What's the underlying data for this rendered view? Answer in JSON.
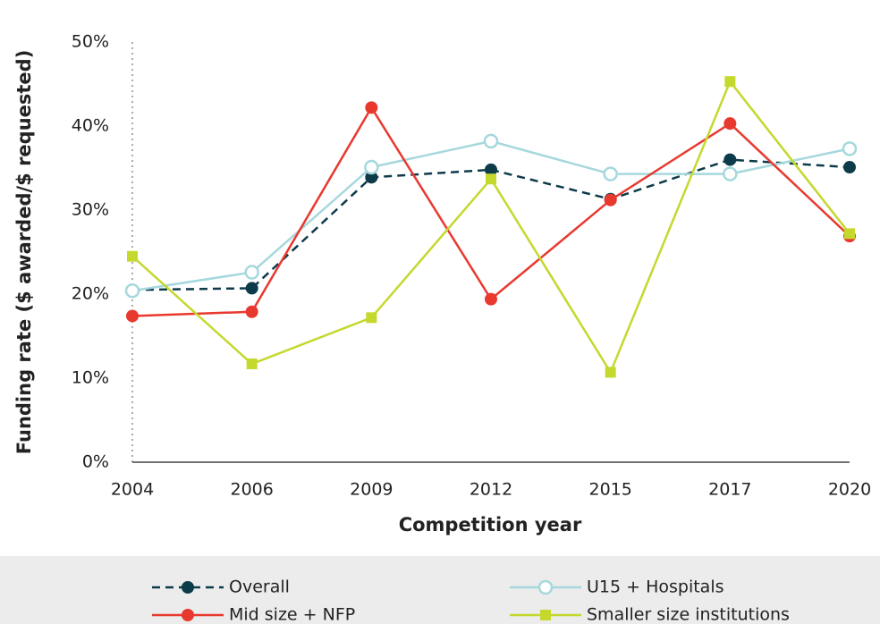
{
  "chart_data": {
    "type": "line",
    "x_label": "Competition year",
    "y_label": "Funding rate ($ awarded/$ requested)",
    "categories": [
      "2004",
      "2006",
      "2009",
      "2012",
      "2015",
      "2017",
      "2020"
    ],
    "series": [
      {
        "name": "Overall",
        "color": "#0d3b4a",
        "marker": "circle",
        "dashed": true,
        "values": [
          20.5,
          20.7,
          33.9,
          34.8,
          31.3,
          36.0,
          35.1
        ]
      },
      {
        "name": "U15 + Hospitals",
        "color": "#a5d8dd",
        "marker": "open-circle",
        "dashed": false,
        "values": [
          20.4,
          22.6,
          35.1,
          38.2,
          34.3,
          34.3,
          37.3
        ]
      },
      {
        "name": "Mid size + NFP",
        "color": "#e8392f",
        "marker": "circle",
        "dashed": false,
        "values": [
          17.4,
          17.9,
          42.2,
          19.4,
          31.2,
          40.3,
          26.9
        ]
      },
      {
        "name": "Smaller size institutions",
        "color": "#c5d82e",
        "marker": "square",
        "dashed": false,
        "values": [
          24.5,
          11.7,
          17.2,
          33.7,
          10.7,
          45.3,
          27.2
        ]
      }
    ],
    "ylim": [
      0,
      50
    ],
    "yticks": [
      {
        "value": 0,
        "label": "0%"
      },
      {
        "value": 10,
        "label": "10%"
      },
      {
        "value": 20,
        "label": "20%"
      },
      {
        "value": 30,
        "label": "30%"
      },
      {
        "value": 40,
        "label": "40%"
      },
      {
        "value": 50,
        "label": "50%"
      }
    ],
    "grid": false,
    "legend": "bottom"
  }
}
